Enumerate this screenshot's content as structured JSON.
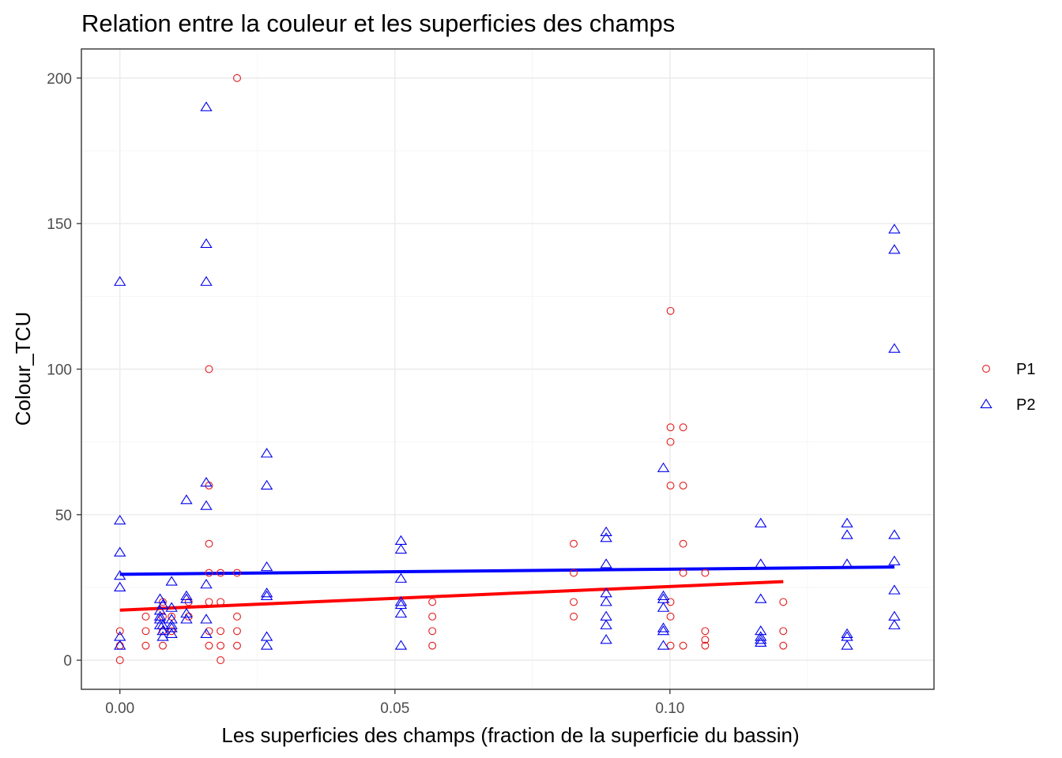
{
  "chart_data": {
    "type": "scatter",
    "title": "Relation entre la couleur et les superficies des champs",
    "xlabel": "Les superficies des champs (fraction de la superficie du bassin)",
    "ylabel": "Colour_TCU",
    "xlim": [
      -0.007,
      0.148
    ],
    "ylim": [
      -10,
      210
    ],
    "x_ticks": [
      0.0,
      0.05,
      0.1
    ],
    "x_tick_labels": [
      "0.00",
      "0.05",
      "0.10"
    ],
    "y_ticks": [
      0,
      50,
      100,
      150,
      200
    ],
    "y_tick_labels": [
      "0",
      "50",
      "100",
      "150",
      "200"
    ],
    "grid": true,
    "legend_position": "right",
    "series": [
      {
        "name": "P1",
        "color": "#e31a1c",
        "marker": "circle",
        "points": [
          [
            0.0,
            0
          ],
          [
            0.0,
            5
          ],
          [
            0.0,
            10
          ],
          [
            0.0047,
            5
          ],
          [
            0.0047,
            10
          ],
          [
            0.0047,
            15
          ],
          [
            0.0078,
            5
          ],
          [
            0.0078,
            10
          ],
          [
            0.0078,
            15
          ],
          [
            0.0078,
            20
          ],
          [
            0.0094,
            10
          ],
          [
            0.0094,
            15
          ],
          [
            0.0125,
            15
          ],
          [
            0.0125,
            20
          ],
          [
            0.0162,
            5
          ],
          [
            0.0162,
            10
          ],
          [
            0.0162,
            20
          ],
          [
            0.0162,
            30
          ],
          [
            0.0162,
            40
          ],
          [
            0.0162,
            60
          ],
          [
            0.0162,
            100
          ],
          [
            0.0183,
            0
          ],
          [
            0.0183,
            5
          ],
          [
            0.0183,
            10
          ],
          [
            0.0183,
            20
          ],
          [
            0.0183,
            30
          ],
          [
            0.0213,
            5
          ],
          [
            0.0213,
            10
          ],
          [
            0.0213,
            15
          ],
          [
            0.0213,
            30
          ],
          [
            0.0213,
            200
          ],
          [
            0.0568,
            5
          ],
          [
            0.0568,
            10
          ],
          [
            0.0568,
            15
          ],
          [
            0.0568,
            20
          ],
          [
            0.0825,
            15
          ],
          [
            0.0825,
            20
          ],
          [
            0.0825,
            30
          ],
          [
            0.0825,
            40
          ],
          [
            0.1001,
            5
          ],
          [
            0.1001,
            15
          ],
          [
            0.1001,
            20
          ],
          [
            0.1001,
            60
          ],
          [
            0.1001,
            75
          ],
          [
            0.1001,
            80
          ],
          [
            0.1001,
            120
          ],
          [
            0.1024,
            5
          ],
          [
            0.1024,
            30
          ],
          [
            0.1024,
            40
          ],
          [
            0.1024,
            60
          ],
          [
            0.1024,
            80
          ],
          [
            0.1064,
            5
          ],
          [
            0.1064,
            7
          ],
          [
            0.1064,
            10
          ],
          [
            0.1064,
            30
          ],
          [
            0.1206,
            5
          ],
          [
            0.1206,
            10
          ],
          [
            0.1206,
            20
          ]
        ],
        "fit_line": [
          [
            0.0,
            17.2
          ],
          [
            0.1206,
            27.0
          ]
        ]
      },
      {
        "name": "P2",
        "color": "#0000ee",
        "marker": "triangle",
        "points": [
          [
            0.0,
            5
          ],
          [
            0.0,
            8
          ],
          [
            0.0,
            25
          ],
          [
            0.0,
            29
          ],
          [
            0.0,
            37
          ],
          [
            0.0,
            48
          ],
          [
            0.0,
            130
          ],
          [
            0.0073,
            12
          ],
          [
            0.0073,
            14
          ],
          [
            0.0073,
            15
          ],
          [
            0.0073,
            17
          ],
          [
            0.0073,
            21
          ],
          [
            0.0078,
            8
          ],
          [
            0.0078,
            10
          ],
          [
            0.0078,
            12
          ],
          [
            0.0078,
            19
          ],
          [
            0.0094,
            9
          ],
          [
            0.0094,
            11
          ],
          [
            0.0094,
            12
          ],
          [
            0.0094,
            14
          ],
          [
            0.0094,
            18
          ],
          [
            0.0094,
            27
          ],
          [
            0.0121,
            14
          ],
          [
            0.0121,
            16
          ],
          [
            0.0121,
            21
          ],
          [
            0.0121,
            22
          ],
          [
            0.0121,
            55
          ],
          [
            0.0157,
            9
          ],
          [
            0.0157,
            14
          ],
          [
            0.0157,
            26
          ],
          [
            0.0157,
            53
          ],
          [
            0.0157,
            61
          ],
          [
            0.0157,
            130
          ],
          [
            0.0157,
            143
          ],
          [
            0.0157,
            190
          ],
          [
            0.0267,
            5
          ],
          [
            0.0267,
            8
          ],
          [
            0.0267,
            22
          ],
          [
            0.0267,
            23
          ],
          [
            0.0267,
            32
          ],
          [
            0.0267,
            60
          ],
          [
            0.0267,
            71
          ],
          [
            0.0511,
            5
          ],
          [
            0.0511,
            16
          ],
          [
            0.0511,
            19
          ],
          [
            0.0511,
            20
          ],
          [
            0.0511,
            28
          ],
          [
            0.0511,
            38
          ],
          [
            0.0511,
            41
          ],
          [
            0.0884,
            7
          ],
          [
            0.0884,
            12
          ],
          [
            0.0884,
            15
          ],
          [
            0.0884,
            20
          ],
          [
            0.0884,
            23
          ],
          [
            0.0884,
            33
          ],
          [
            0.0884,
            42
          ],
          [
            0.0884,
            44
          ],
          [
            0.0988,
            5
          ],
          [
            0.0988,
            10
          ],
          [
            0.0988,
            11
          ],
          [
            0.0988,
            18
          ],
          [
            0.0988,
            21
          ],
          [
            0.0988,
            22
          ],
          [
            0.0988,
            66
          ],
          [
            0.1165,
            6
          ],
          [
            0.1165,
            7
          ],
          [
            0.1165,
            8
          ],
          [
            0.1165,
            10
          ],
          [
            0.1165,
            21
          ],
          [
            0.1165,
            33
          ],
          [
            0.1165,
            47
          ],
          [
            0.1322,
            5
          ],
          [
            0.1322,
            8
          ],
          [
            0.1322,
            9
          ],
          [
            0.1322,
            33
          ],
          [
            0.1322,
            43
          ],
          [
            0.1322,
            47
          ],
          [
            0.1408,
            12
          ],
          [
            0.1408,
            15
          ],
          [
            0.1408,
            24
          ],
          [
            0.1408,
            34
          ],
          [
            0.1408,
            43
          ],
          [
            0.1408,
            107
          ],
          [
            0.1408,
            141
          ],
          [
            0.1408,
            148
          ]
        ],
        "fit_line": [
          [
            0.0,
            29.5
          ],
          [
            0.1408,
            32.0
          ]
        ]
      }
    ]
  }
}
